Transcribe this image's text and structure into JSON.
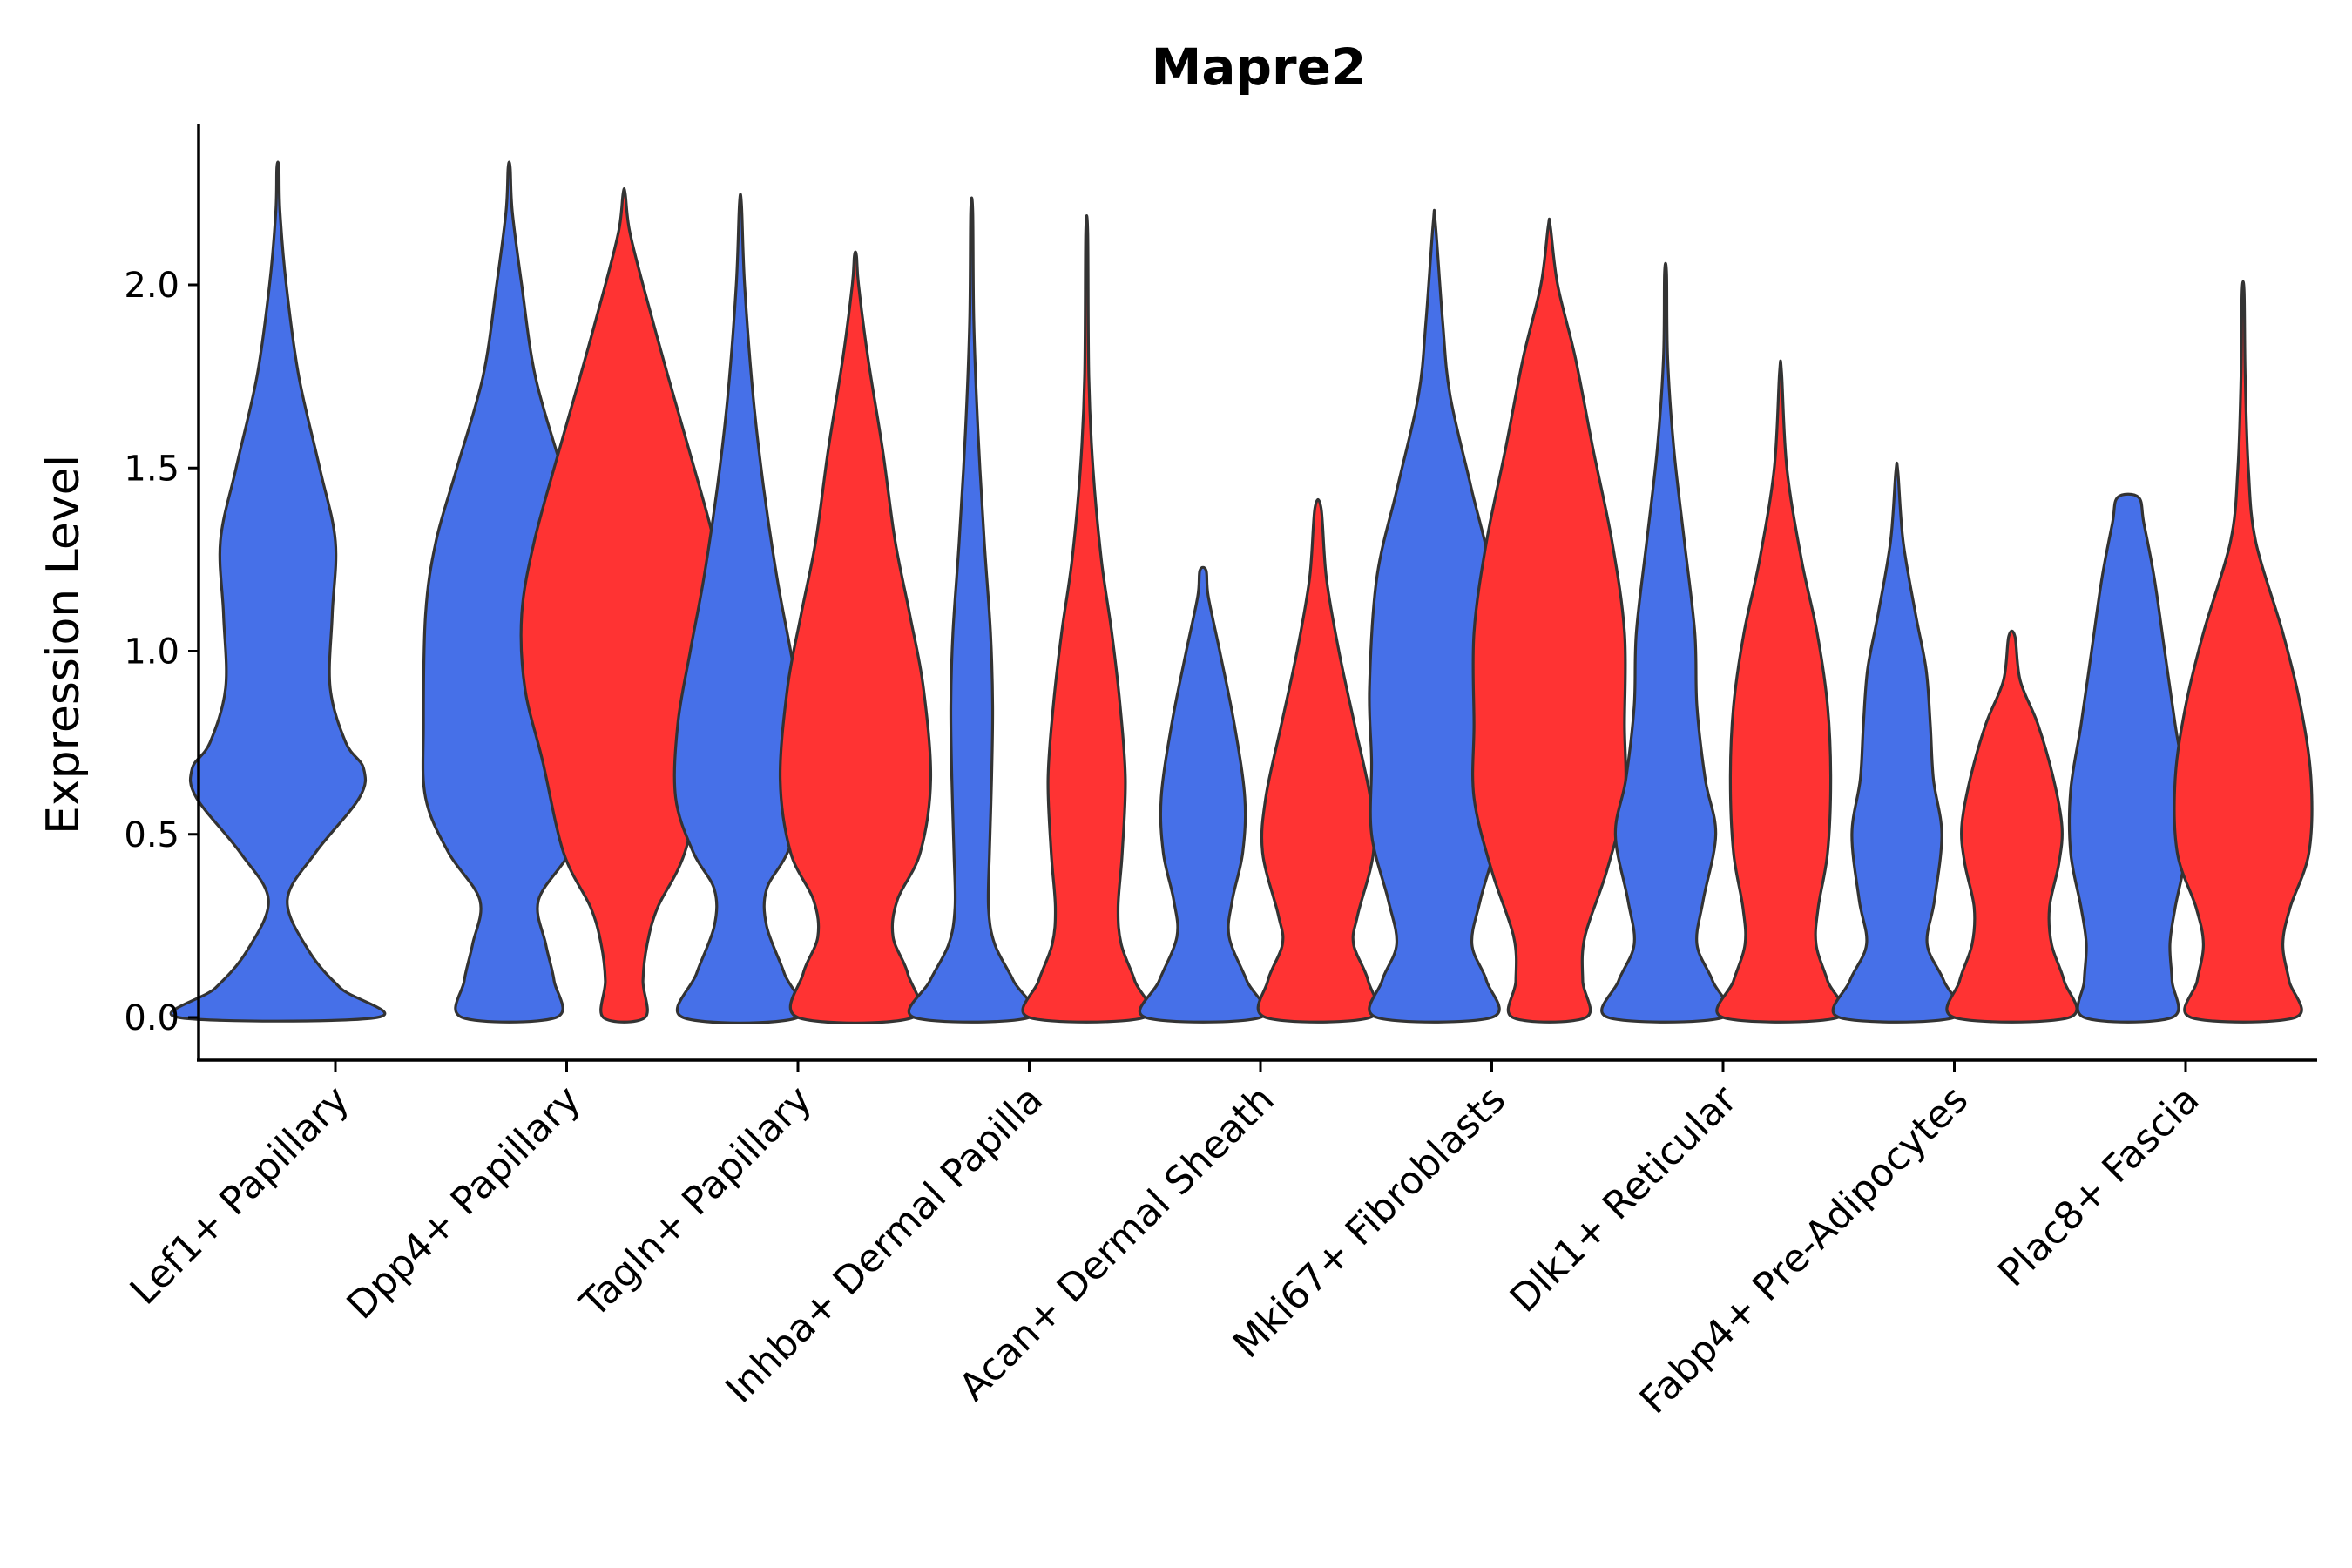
{
  "chart_data": {
    "type": "violin",
    "title": "Mapre2",
    "xlabel": "",
    "ylabel": "Expression Level",
    "ylim": [
      -0.12,
      2.45
    ],
    "yticks": [
      "0.0",
      "0.5",
      "1.0",
      "1.5",
      "2.0"
    ],
    "ytick_values": [
      0,
      0.5,
      1.0,
      1.5,
      2.0
    ],
    "categories": [
      "Lef1+ Papillary",
      "Dpp4+ Papillary",
      "Tagln+ Papillary",
      "Inhba+ Dermal Papilla",
      "Acan+ Dermal Sheath",
      "Mki67+ Fibroblasts",
      "Dlk1+ Reticular",
      "Fabp4+ Pre-Adipocytes",
      "Plac8+ Fascia"
    ],
    "series_colors": [
      "#4670e8",
      "#ff3333"
    ],
    "violins": [
      {
        "group": 0,
        "series": 0,
        "max": 2.32,
        "profile": [
          [
            0,
            0.95
          ],
          [
            0.08,
            0.6
          ],
          [
            0.18,
            0.3
          ],
          [
            0.32,
            0.09
          ],
          [
            0.45,
            0.36
          ],
          [
            0.6,
            0.78
          ],
          [
            0.68,
            0.82
          ],
          [
            0.75,
            0.65
          ],
          [
            0.9,
            0.5
          ],
          [
            1.1,
            0.52
          ],
          [
            1.3,
            0.55
          ],
          [
            1.5,
            0.4
          ],
          [
            1.75,
            0.2
          ],
          [
            2.0,
            0.08
          ],
          [
            2.2,
            0.02
          ],
          [
            2.32,
            0.01
          ]
        ]
      },
      {
        "group": 1,
        "series": 0,
        "max": 2.32,
        "profile": [
          [
            0,
            0.45
          ],
          [
            0.1,
            0.43
          ],
          [
            0.2,
            0.35
          ],
          [
            0.32,
            0.28
          ],
          [
            0.45,
            0.58
          ],
          [
            0.6,
            0.8
          ],
          [
            0.8,
            0.82
          ],
          [
            1.1,
            0.8
          ],
          [
            1.3,
            0.7
          ],
          [
            1.5,
            0.5
          ],
          [
            1.75,
            0.25
          ],
          [
            2.0,
            0.12
          ],
          [
            2.2,
            0.03
          ],
          [
            2.32,
            0.01
          ]
        ]
      },
      {
        "group": 1,
        "series": 1,
        "max": 2.25,
        "profile": [
          [
            0,
            0.2
          ],
          [
            0.1,
            0.18
          ],
          [
            0.2,
            0.22
          ],
          [
            0.3,
            0.32
          ],
          [
            0.45,
            0.58
          ],
          [
            0.7,
            0.78
          ],
          [
            0.9,
            0.95
          ],
          [
            1.1,
            0.98
          ],
          [
            1.3,
            0.86
          ],
          [
            1.55,
            0.62
          ],
          [
            1.75,
            0.42
          ],
          [
            2.0,
            0.18
          ],
          [
            2.15,
            0.05
          ],
          [
            2.25,
            0.01
          ]
        ]
      },
      {
        "group": 2,
        "series": 0,
        "max": 2.22,
        "profile": [
          [
            0,
            0.55
          ],
          [
            0.12,
            0.42
          ],
          [
            0.25,
            0.25
          ],
          [
            0.35,
            0.25
          ],
          [
            0.45,
            0.45
          ],
          [
            0.6,
            0.62
          ],
          [
            0.8,
            0.6
          ],
          [
            1.0,
            0.48
          ],
          [
            1.2,
            0.35
          ],
          [
            1.45,
            0.22
          ],
          [
            1.7,
            0.12
          ],
          [
            2.0,
            0.04
          ],
          [
            2.22,
            0.01
          ]
        ]
      },
      {
        "group": 2,
        "series": 1,
        "max": 2.08,
        "profile": [
          [
            0,
            0.55
          ],
          [
            0.12,
            0.5
          ],
          [
            0.22,
            0.36
          ],
          [
            0.32,
            0.4
          ],
          [
            0.45,
            0.62
          ],
          [
            0.65,
            0.72
          ],
          [
            0.9,
            0.65
          ],
          [
            1.1,
            0.52
          ],
          [
            1.3,
            0.38
          ],
          [
            1.55,
            0.26
          ],
          [
            1.8,
            0.12
          ],
          [
            2.0,
            0.03
          ],
          [
            2.08,
            0.01
          ]
        ]
      },
      {
        "group": 3,
        "series": 0,
        "max": 2.2,
        "profile": [
          [
            0,
            0.55
          ],
          [
            0.1,
            0.4
          ],
          [
            0.2,
            0.22
          ],
          [
            0.3,
            0.16
          ],
          [
            0.45,
            0.17
          ],
          [
            0.65,
            0.19
          ],
          [
            0.85,
            0.2
          ],
          [
            1.05,
            0.18
          ],
          [
            1.3,
            0.12
          ],
          [
            1.6,
            0.06
          ],
          [
            1.9,
            0.02
          ],
          [
            2.2,
            0.01
          ]
        ]
      },
      {
        "group": 3,
        "series": 1,
        "max": 2.14,
        "profile": [
          [
            0,
            0.55
          ],
          [
            0.1,
            0.46
          ],
          [
            0.2,
            0.33
          ],
          [
            0.3,
            0.3
          ],
          [
            0.45,
            0.34
          ],
          [
            0.65,
            0.37
          ],
          [
            0.85,
            0.32
          ],
          [
            1.05,
            0.24
          ],
          [
            1.25,
            0.14
          ],
          [
            1.5,
            0.06
          ],
          [
            1.75,
            0.02
          ],
          [
            2.14,
            0.01
          ]
        ]
      },
      {
        "group": 4,
        "series": 0,
        "max": 1.22,
        "profile": [
          [
            0,
            0.55
          ],
          [
            0.1,
            0.42
          ],
          [
            0.22,
            0.25
          ],
          [
            0.32,
            0.28
          ],
          [
            0.45,
            0.38
          ],
          [
            0.6,
            0.4
          ],
          [
            0.8,
            0.3
          ],
          [
            1.0,
            0.16
          ],
          [
            1.15,
            0.05
          ],
          [
            1.22,
            0.03
          ]
        ]
      },
      {
        "group": 4,
        "series": 1,
        "max": 1.39,
        "profile": [
          [
            0,
            0.5
          ],
          [
            0.1,
            0.48
          ],
          [
            0.2,
            0.34
          ],
          [
            0.28,
            0.38
          ],
          [
            0.45,
            0.53
          ],
          [
            0.6,
            0.5
          ],
          [
            0.8,
            0.35
          ],
          [
            1.0,
            0.2
          ],
          [
            1.2,
            0.08
          ],
          [
            1.39,
            0.03
          ]
        ]
      },
      {
        "group": 5,
        "series": 0,
        "max": 2.17,
        "profile": [
          [
            0,
            0.55
          ],
          [
            0.1,
            0.5
          ],
          [
            0.2,
            0.36
          ],
          [
            0.32,
            0.44
          ],
          [
            0.5,
            0.6
          ],
          [
            0.7,
            0.6
          ],
          [
            0.9,
            0.62
          ],
          [
            1.2,
            0.55
          ],
          [
            1.45,
            0.35
          ],
          [
            1.7,
            0.15
          ],
          [
            1.9,
            0.08
          ],
          [
            2.17,
            0.01
          ]
        ]
      },
      {
        "group": 5,
        "series": 1,
        "max": 2.16,
        "profile": [
          [
            0,
            0.35
          ],
          [
            0.1,
            0.32
          ],
          [
            0.22,
            0.34
          ],
          [
            0.4,
            0.55
          ],
          [
            0.6,
            0.72
          ],
          [
            0.8,
            0.72
          ],
          [
            1.05,
            0.72
          ],
          [
            1.3,
            0.6
          ],
          [
            1.55,
            0.42
          ],
          [
            1.8,
            0.25
          ],
          [
            2.0,
            0.08
          ],
          [
            2.16,
            0.01
          ]
        ]
      },
      {
        "group": 6,
        "series": 0,
        "max": 2.03,
        "profile": [
          [
            0,
            0.55
          ],
          [
            0.1,
            0.45
          ],
          [
            0.2,
            0.3
          ],
          [
            0.32,
            0.36
          ],
          [
            0.5,
            0.48
          ],
          [
            0.65,
            0.38
          ],
          [
            0.85,
            0.3
          ],
          [
            1.05,
            0.28
          ],
          [
            1.3,
            0.18
          ],
          [
            1.55,
            0.08
          ],
          [
            1.8,
            0.02
          ],
          [
            2.03,
            0.01
          ]
        ]
      },
      {
        "group": 6,
        "series": 1,
        "max": 1.76,
        "profile": [
          [
            0,
            0.55
          ],
          [
            0.1,
            0.45
          ],
          [
            0.2,
            0.34
          ],
          [
            0.3,
            0.36
          ],
          [
            0.45,
            0.45
          ],
          [
            0.65,
            0.48
          ],
          [
            0.85,
            0.45
          ],
          [
            1.05,
            0.35
          ],
          [
            1.25,
            0.2
          ],
          [
            1.5,
            0.06
          ],
          [
            1.76,
            0.01
          ]
        ]
      },
      {
        "group": 7,
        "series": 0,
        "max": 1.49,
        "profile": [
          [
            0,
            0.55
          ],
          [
            0.1,
            0.45
          ],
          [
            0.2,
            0.29
          ],
          [
            0.32,
            0.36
          ],
          [
            0.5,
            0.43
          ],
          [
            0.65,
            0.35
          ],
          [
            0.8,
            0.32
          ],
          [
            0.95,
            0.28
          ],
          [
            1.1,
            0.18
          ],
          [
            1.3,
            0.06
          ],
          [
            1.49,
            0.01
          ]
        ]
      },
      {
        "group": 7,
        "series": 1,
        "max": 1.04,
        "profile": [
          [
            0,
            0.55
          ],
          [
            0.1,
            0.5
          ],
          [
            0.2,
            0.38
          ],
          [
            0.3,
            0.36
          ],
          [
            0.42,
            0.45
          ],
          [
            0.52,
            0.48
          ],
          [
            0.65,
            0.4
          ],
          [
            0.8,
            0.25
          ],
          [
            0.92,
            0.08
          ],
          [
            1.04,
            0.03
          ]
        ]
      },
      {
        "group": 8,
        "series": 0,
        "max": 1.42,
        "profile": [
          [
            0,
            0.42
          ],
          [
            0.1,
            0.42
          ],
          [
            0.2,
            0.4
          ],
          [
            0.3,
            0.45
          ],
          [
            0.45,
            0.55
          ],
          [
            0.62,
            0.55
          ],
          [
            0.8,
            0.45
          ],
          [
            1.0,
            0.35
          ],
          [
            1.2,
            0.25
          ],
          [
            1.35,
            0.15
          ],
          [
            1.42,
            0.1
          ]
        ]
      },
      {
        "group": 8,
        "series": 1,
        "max": 1.98,
        "profile": [
          [
            0,
            0.5
          ],
          [
            0.1,
            0.44
          ],
          [
            0.2,
            0.38
          ],
          [
            0.3,
            0.45
          ],
          [
            0.45,
            0.63
          ],
          [
            0.65,
            0.65
          ],
          [
            0.85,
            0.55
          ],
          [
            1.05,
            0.38
          ],
          [
            1.3,
            0.12
          ],
          [
            1.5,
            0.05
          ],
          [
            1.75,
            0.02
          ],
          [
            1.98,
            0.01
          ]
        ]
      }
    ]
  }
}
